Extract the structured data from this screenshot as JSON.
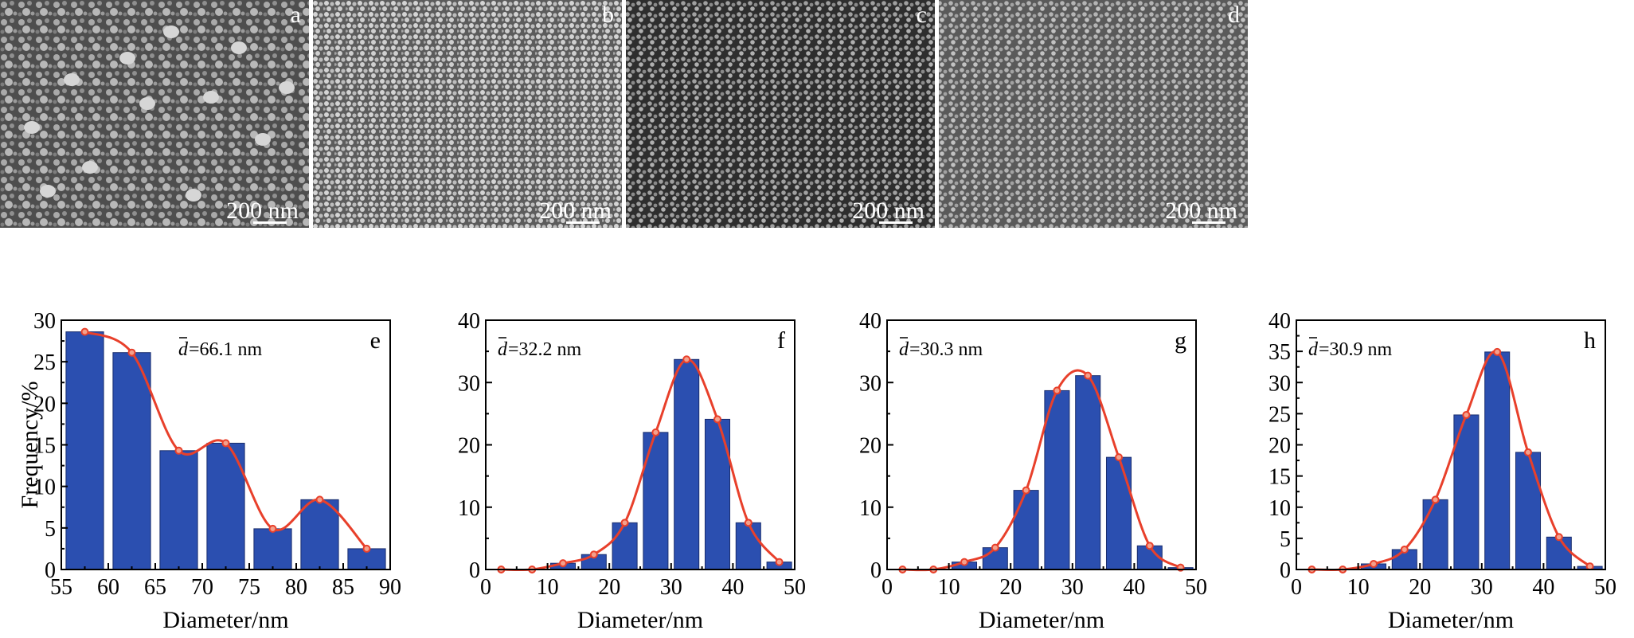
{
  "sem_panels": [
    {
      "letter": "a",
      "scale": "200 nm",
      "tone": "#5a5a5a"
    },
    {
      "letter": "b",
      "scale": "200 nm",
      "tone": "#7a7a7a"
    },
    {
      "letter": "c",
      "scale": "200 nm",
      "tone": "#3e3e3e"
    },
    {
      "letter": "d",
      "scale": "200 nm",
      "tone": "#6f6f6f"
    }
  ],
  "chart_data": [
    {
      "type": "bar",
      "panel": "e",
      "mean_label": "=66.1 nm",
      "xlabel": "Diameter/nm",
      "ylabel": "Frequency/%",
      "xlim": [
        55,
        90
      ],
      "ylim": [
        0,
        30
      ],
      "xticks": [
        55,
        60,
        65,
        70,
        75,
        80,
        85,
        90
      ],
      "yticks": [
        0,
        5,
        10,
        15,
        20,
        25,
        30
      ],
      "bar_width": 4,
      "x": [
        57.5,
        62.5,
        67.5,
        72.5,
        77.5,
        82.5,
        87.5
      ],
      "values": [
        28.6,
        26.1,
        14.3,
        15.2,
        4.9,
        8.4,
        2.5
      ],
      "fit": true,
      "bar_color": "#2b4fb0",
      "fit_color": "#e8402b"
    },
    {
      "type": "bar",
      "panel": "f",
      "mean_label": "=32.2 nm",
      "xlabel": "Diameter/nm",
      "ylabel": "",
      "xlim": [
        0,
        50
      ],
      "ylim": [
        0,
        40
      ],
      "xticks": [
        0,
        10,
        20,
        30,
        40,
        50
      ],
      "yticks": [
        0,
        10,
        20,
        30,
        40
      ],
      "bar_width": 4,
      "x": [
        2.5,
        7.5,
        12.5,
        17.5,
        22.5,
        27.5,
        32.5,
        37.5,
        42.5,
        47.5
      ],
      "values": [
        0,
        0,
        1.0,
        2.4,
        7.5,
        22.0,
        33.7,
        24.1,
        7.5,
        1.2
      ],
      "fit": true,
      "bar_color": "#2b4fb0",
      "fit_color": "#e8402b"
    },
    {
      "type": "bar",
      "panel": "g",
      "mean_label": "=30.3 nm",
      "xlabel": "Diameter/nm",
      "ylabel": "",
      "xlim": [
        0,
        50
      ],
      "ylim": [
        0,
        40
      ],
      "xticks": [
        0,
        10,
        20,
        30,
        40,
        50
      ],
      "yticks": [
        0,
        10,
        20,
        30,
        40
      ],
      "bar_width": 4,
      "x": [
        2.5,
        7.5,
        12.5,
        17.5,
        22.5,
        27.5,
        32.5,
        37.5,
        42.5,
        47.5
      ],
      "values": [
        0,
        0,
        1.2,
        3.5,
        12.7,
        28.7,
        31.1,
        18.0,
        3.8,
        0.3
      ],
      "fit": true,
      "bar_color": "#2b4fb0",
      "fit_color": "#e8402b"
    },
    {
      "type": "bar",
      "panel": "h",
      "mean_label": "=30.9 nm",
      "xlabel": "Diameter/nm",
      "ylabel": "",
      "xlim": [
        0,
        50
      ],
      "ylim": [
        0,
        40
      ],
      "xticks": [
        0,
        10,
        20,
        30,
        40,
        50
      ],
      "yticks": [
        0,
        5,
        10,
        15,
        20,
        25,
        30,
        35,
        40
      ],
      "bar_width": 4,
      "x": [
        2.5,
        7.5,
        12.5,
        17.5,
        22.5,
        27.5,
        32.5,
        37.5,
        42.5,
        47.5
      ],
      "values": [
        0,
        0,
        0.9,
        3.2,
        11.2,
        24.8,
        34.9,
        18.8,
        5.2,
        0.5
      ],
      "fit": true,
      "bar_color": "#2b4fb0",
      "fit_color": "#e8402b"
    }
  ]
}
